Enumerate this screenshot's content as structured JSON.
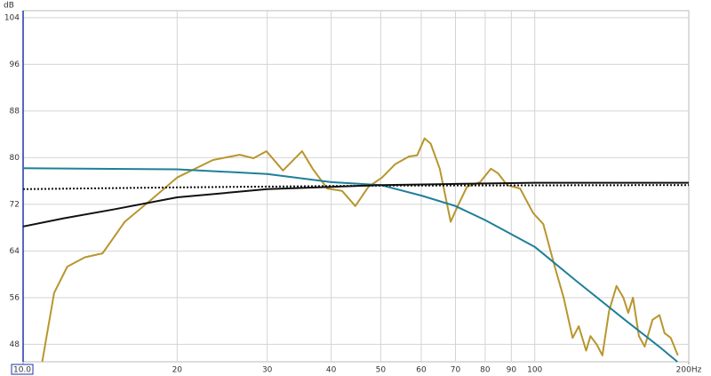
{
  "chart_data": {
    "type": "line",
    "y_label": "dB",
    "xscale": "log",
    "grid": true,
    "xlim": [
      10,
      200
    ],
    "ylim": [
      45,
      105.2
    ],
    "xticks": [
      {
        "value": 10,
        "label": "10.0"
      },
      20,
      30,
      40,
      50,
      60,
      70,
      80,
      90,
      100,
      {
        "value": 200,
        "label": "200Hz"
      }
    ],
    "yticks": [
      48,
      56,
      64,
      72,
      80,
      88,
      96,
      104
    ],
    "series": [
      {
        "color": "#b8962e",
        "style": "solid",
        "x": [
          10.9,
          11.5,
          12.2,
          13.2,
          14.3,
          15.8,
          17.8,
          20,
          23.5,
          26.5,
          28.2,
          29.9,
          32.2,
          35.1,
          36.8,
          39.3,
          42.0,
          44.6,
          47.3,
          50.3,
          53.4,
          56.8,
          58.9,
          60.9,
          62.6,
          65.2,
          68.5,
          70.7,
          73.7,
          78.2,
          82.1,
          84.8,
          88.3,
          93.6,
          99.3,
          103.9,
          109.4,
          113.9,
          118.6,
          121.9,
          126.0,
          128.5,
          132.3,
          135.6,
          139.7,
          144.5,
          149.0,
          152.3,
          155.6,
          159.8,
          164.0,
          169.9,
          175.3,
          179.4,
          184.4,
          190.4
        ],
        "values": [
          45,
          56.8,
          61.3,
          62.9,
          63.6,
          69,
          72.8,
          76.6,
          79.6,
          80.5,
          79.9,
          81.1,
          77.8,
          81.1,
          78.1,
          74.7,
          74.3,
          71.7,
          75.0,
          76.6,
          78.9,
          80.2,
          80.4,
          83.3,
          82.4,
          78.1,
          69,
          71.7,
          75,
          75.8,
          78.1,
          77.3,
          75.3,
          74.7,
          70.5,
          68.6,
          61.3,
          56,
          49.1,
          51.1,
          46.9,
          49.4,
          47.9,
          46.1,
          53.7,
          58,
          56,
          53.4,
          56,
          49.4,
          47.6,
          52.2,
          53,
          49.9,
          49.1,
          46.1
        ]
      },
      {
        "color": "#1f7f99",
        "style": "solid",
        "x": [
          10,
          20,
          30,
          40,
          50,
          60,
          70,
          80,
          100,
          120,
          150,
          175,
          190
        ],
        "values": [
          78.2,
          78.0,
          77.2,
          75.8,
          75.3,
          73.5,
          71.7,
          69.3,
          64.7,
          59.0,
          52.2,
          47.6,
          45
        ]
      },
      {
        "color": "#111111",
        "style": "solid",
        "x": [
          10,
          12,
          15,
          20,
          30,
          40,
          50,
          70,
          100,
          200
        ],
        "values": [
          68.2,
          69.6,
          71.1,
          73.2,
          74.6,
          75.0,
          75.3,
          75.5,
          75.7,
          75.7
        ]
      },
      {
        "color": "#111111",
        "style": "dotted",
        "x": [
          10,
          20,
          50,
          200
        ],
        "values": [
          74.6,
          74.9,
          75.2,
          75.3
        ]
      }
    ]
  }
}
